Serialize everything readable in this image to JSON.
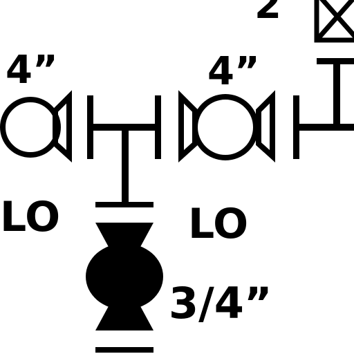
{
  "labels": {
    "size_left": "4”",
    "size_center": "4”",
    "size_small": "3/4”",
    "top_number": "2",
    "lo_left": "LO",
    "lo_center": "LO"
  },
  "symbols": {
    "valve_left": "butterfly-valve-icon",
    "valve_center": "butterfly-valve-icon",
    "valve_bottom": "ball-valve-filled-icon",
    "valve_top": "gate-valve-icon"
  },
  "colors": {
    "line": "#000000",
    "background": "#ffffff"
  }
}
